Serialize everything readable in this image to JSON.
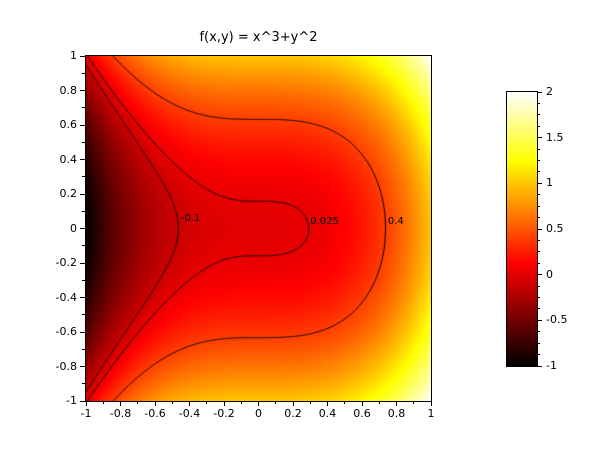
{
  "chart_data": {
    "type": "heatmap",
    "title": "f(x,y) = x^3+y^2",
    "function": "f(x,y) = x^3 + y^2",
    "x_range": [
      -1,
      1
    ],
    "y_range": [
      -1,
      1
    ],
    "value_range": [
      -1,
      2
    ],
    "grid": false,
    "colormap": "hot",
    "colormap_stops": [
      {
        "t": 0.0,
        "color": "#000000"
      },
      {
        "t": 0.375,
        "color": "#ff0000"
      },
      {
        "t": 0.75,
        "color": "#ffff00"
      },
      {
        "t": 1.0,
        "color": "#ffffff"
      }
    ],
    "x_axis": {
      "major_values": [
        -1,
        -0.8,
        -0.6,
        -0.4,
        -0.2,
        0,
        0.2,
        0.4,
        0.6,
        0.8,
        1
      ],
      "major_labels": [
        "-1",
        "-0.8",
        "-0.6",
        "-0.4",
        "-0.2",
        "0",
        "0.2",
        "0.4",
        "0.6",
        "0.8",
        "1"
      ],
      "minor_step": 0.1
    },
    "y_axis": {
      "major_values": [
        -1,
        -0.8,
        -0.6,
        -0.4,
        -0.2,
        0,
        0.2,
        0.4,
        0.6,
        0.8,
        1
      ],
      "major_labels": [
        "-1",
        "-0.8",
        "-0.6",
        "-0.4",
        "-0.2",
        "0",
        "0.2",
        "0.4",
        "0.6",
        "0.8",
        "1"
      ],
      "minor_step": 0.1
    },
    "contours": [
      {
        "level": -0.1,
        "label": "-0.1",
        "label_pos": {
          "x": -0.45,
          "y": 0.055
        }
      },
      {
        "level": 0.025,
        "label": "0.025",
        "label_pos": {
          "x": 0.3,
          "y": 0.04
        }
      },
      {
        "level": 0.4,
        "label": "0.4",
        "label_pos": {
          "x": 0.75,
          "y": 0.04
        }
      }
    ],
    "contour_line_color": "#000000",
    "colorbar": {
      "min": -1,
      "max": 2,
      "major_values": [
        2,
        1.5,
        1,
        0.5,
        0,
        -0.5,
        -1
      ],
      "major_labels": [
        "2",
        "1.5",
        "1",
        "0.5",
        "0",
        "-0.5",
        "-1"
      ],
      "minor_step": 0.125
    }
  }
}
